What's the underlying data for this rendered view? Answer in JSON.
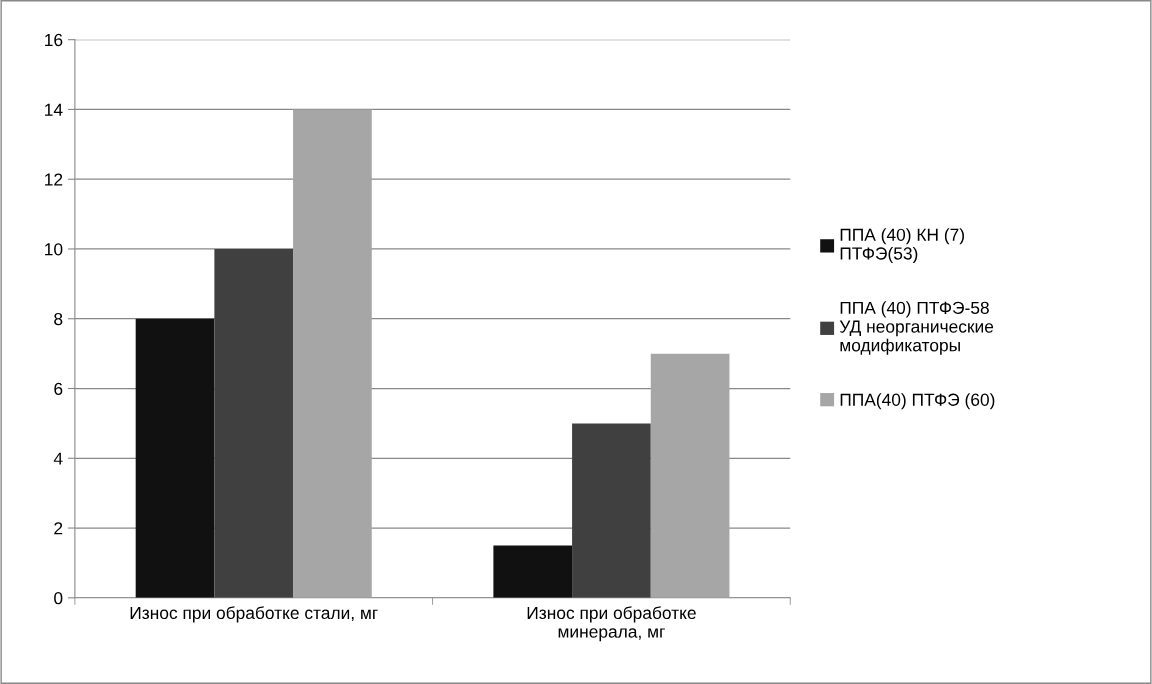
{
  "chart_data": {
    "type": "bar",
    "categories": [
      "Износ при обработке стали, мг",
      "Износ при обработке\nминерала, мг"
    ],
    "series": [
      {
        "name": "ППА (40) КН (7)\nПТФЭ(53)",
        "color": "#111111",
        "values": [
          8,
          1.5
        ]
      },
      {
        "name": "ППА (40) ПТФЭ-58\nУД неорганические\nмодификаторы",
        "color": "#404040",
        "values": [
          10,
          5
        ]
      },
      {
        "name": "ППА(40) ПТФЭ (60)",
        "color": "#a6a6a6",
        "values": [
          14,
          7
        ]
      }
    ],
    "ylim": [
      0,
      16
    ],
    "yticks": [
      0,
      2,
      4,
      6,
      8,
      10,
      12,
      14,
      16
    ],
    "grid": "y",
    "legend": "right"
  }
}
